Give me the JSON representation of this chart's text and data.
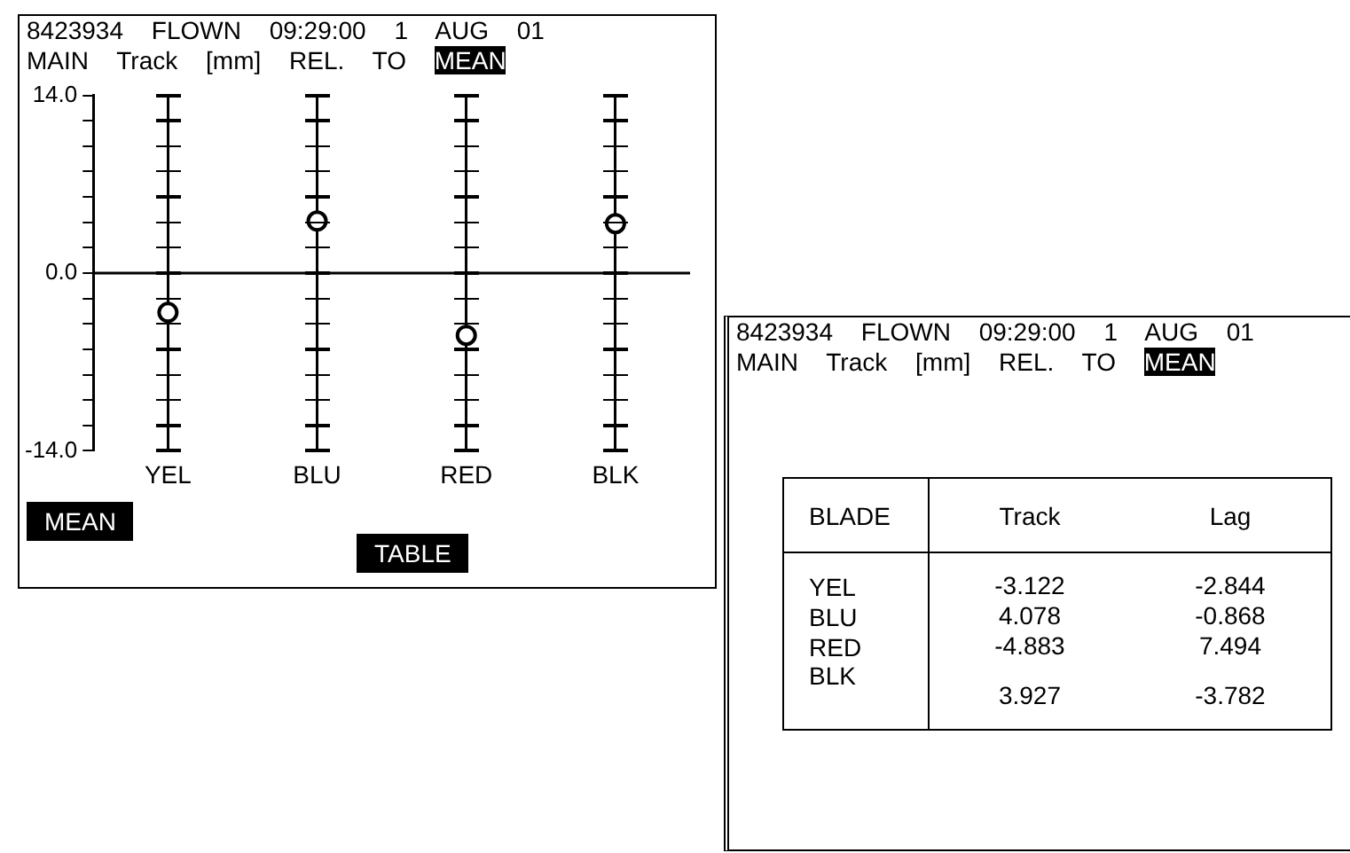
{
  "chart_data": [
    {
      "type": "scatter",
      "title": "8423934 FLOWN 09:29:00 1 AUG 01",
      "subtitle": "MAIN Track [mm] REL. TO MEAN",
      "categories": [
        "YEL",
        "BLU",
        "RED",
        "BLK"
      ],
      "series": [
        {
          "color": "#000000",
          "values": [
            -3.1,
            4.1,
            -4.9,
            3.9
          ]
        }
      ],
      "ylim": [
        -14,
        14
      ],
      "yticks": [
        {
          "value": -14,
          "label": "-14.0"
        },
        {
          "value": -12,
          "label": null
        },
        {
          "value": -10,
          "label": null
        },
        {
          "value": -8,
          "label": null
        },
        {
          "value": -6,
          "label": null
        },
        {
          "value": -4,
          "label": null
        },
        {
          "value": -2,
          "label": null
        },
        {
          "value": 0,
          "label": "0.0"
        },
        {
          "value": 2,
          "label": null
        },
        {
          "value": 4,
          "label": null
        },
        {
          "value": 6,
          "label": null
        },
        {
          "value": 8,
          "label": null
        },
        {
          "value": 10,
          "label": null
        },
        {
          "value": 12,
          "label": null
        },
        {
          "value": 14,
          "label": "14.0"
        }
      ],
      "grid": "x",
      "marker": "circle",
      "ref_lines": [
        {
          "axis": "y",
          "value": 0,
          "color": "#000000"
        }
      ],
      "annotations": [
        "MEAN",
        "TABLE"
      ]
    },
    {
      "type": "other",
      "title": "8423934 FLOWN 09:29:00 1 AUG 01",
      "subtitle": "MAIN Track [mm] REL. TO MEAN",
      "xlabel": "BLADE",
      "categories": [
        "YEL",
        "BLU",
        "RED",
        "BLK"
      ],
      "series": [
        {
          "name": "Track",
          "values": [
            -3.122,
            4.078,
            -4.883,
            3.927
          ]
        },
        {
          "name": "Lag",
          "values": [
            -2.844,
            -0.868,
            7.494,
            -3.782
          ]
        }
      ],
      "data_labels": true
    }
  ]
}
